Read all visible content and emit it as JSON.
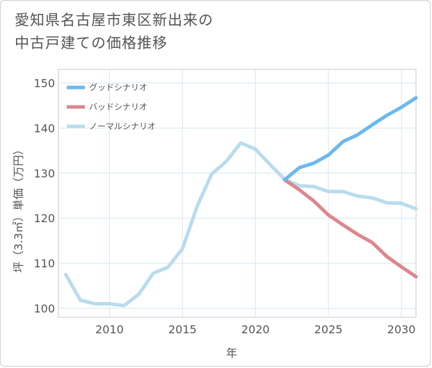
{
  "title_line1": "愛知県名古屋市東区新出来の",
  "title_line2": "中古戸建ての価格推移",
  "chart_data": {
    "type": "line",
    "xlabel": "年",
    "ylabel": "坪（3.3㎡）単価（万円）",
    "xlim": [
      2006.5,
      2031
    ],
    "ylim": [
      98,
      153
    ],
    "xticks": [
      2010,
      2015,
      2020,
      2025,
      2030
    ],
    "yticks": [
      100,
      110,
      120,
      130,
      140,
      150
    ],
    "grid": true,
    "legend_position": "top-left",
    "series": [
      {
        "name": "グッドシナリオ",
        "color": "#6bb8ee",
        "x": [
          2022,
          2023,
          2024,
          2025,
          2026,
          2027,
          2028,
          2029,
          2030,
          2031
        ],
        "y": [
          128.5,
          131.2,
          132.2,
          134.0,
          137.0,
          138.5,
          140.7,
          142.8,
          144.6,
          146.7
        ]
      },
      {
        "name": "バッドシナリオ",
        "color": "#dd868d",
        "x": [
          2022,
          2023,
          2024,
          2025,
          2026,
          2027,
          2028,
          2029,
          2030,
          2031
        ],
        "y": [
          128.5,
          126.3,
          123.8,
          120.7,
          118.5,
          116.4,
          114.6,
          111.5,
          109.2,
          107.0
        ]
      },
      {
        "name": "ノーマルシナリオ",
        "color": "#b9dcec",
        "x": [
          2007,
          2008,
          2009,
          2010,
          2011,
          2012,
          2013,
          2014,
          2015,
          2016,
          2017,
          2018,
          2019,
          2020,
          2021,
          2022,
          2023,
          2024,
          2025,
          2026,
          2027,
          2028,
          2029,
          2030,
          2031
        ],
        "y": [
          107.5,
          101.8,
          101.0,
          101.0,
          100.6,
          103.1,
          107.8,
          109.1,
          113.2,
          122.6,
          129.8,
          132.6,
          136.7,
          135.3,
          131.9,
          128.6,
          127.2,
          127.0,
          125.9,
          125.9,
          124.9,
          124.5,
          123.4,
          123.3,
          122.1
        ]
      }
    ]
  }
}
